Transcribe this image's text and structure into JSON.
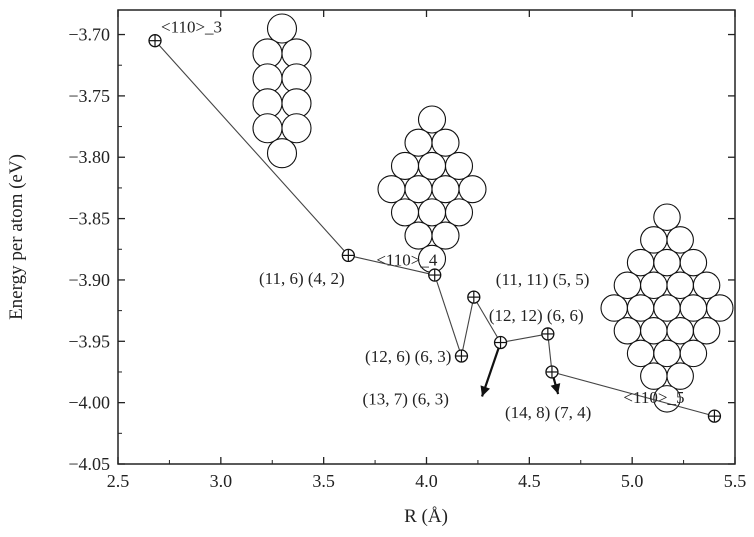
{
  "chart_data": {
    "type": "scatter",
    "title": "",
    "xlabel": "R (Å)",
    "ylabel": "Energy per atom (eV)",
    "xlim": [
      2.5,
      5.5
    ],
    "ylim": [
      -4.05,
      -3.68
    ],
    "xticks": [
      "2.5",
      "3.0",
      "3.5",
      "4.0",
      "4.5",
      "5.0",
      "5.5"
    ],
    "yticks": [
      "-3.70",
      "-3.75",
      "-3.80",
      "-3.85",
      "-3.90",
      "-3.95",
      "-4.00",
      "-4.05"
    ],
    "grid": false,
    "marker": "circle-plus",
    "points": [
      {
        "x": 2.68,
        "y": -3.705,
        "label": "<110>_3"
      },
      {
        "x": 3.62,
        "y": -3.88,
        "label": "<110>_4"
      },
      {
        "x": 4.04,
        "y": -3.896,
        "label": "(11, 6) (4, 2)"
      },
      {
        "x": 4.17,
        "y": -3.962,
        "label": "(12, 6) (6, 3)"
      },
      {
        "x": 4.23,
        "y": -3.914,
        "label": "(11, 11) (5, 5)"
      },
      {
        "x": 4.36,
        "y": -3.951,
        "label": "(13, 7) (6, 3)"
      },
      {
        "x": 4.59,
        "y": -3.944,
        "label": "(12, 12) (6, 6)"
      },
      {
        "x": 4.61,
        "y": -3.975,
        "label": "(14, 8) (7, 4)"
      },
      {
        "x": 5.4,
        "y": -4.011,
        "label": "<110>_5"
      }
    ],
    "connections": [
      [
        0,
        1
      ],
      [
        1,
        2
      ],
      [
        2,
        3
      ],
      [
        3,
        4
      ],
      [
        4,
        5
      ],
      [
        5,
        6
      ],
      [
        6,
        7
      ],
      [
        7,
        8
      ]
    ],
    "arrows": [
      [
        5,
        4.27,
        -3.995
      ],
      [
        7,
        4.64,
        -3.993
      ]
    ],
    "label_anchors": [
      {
        "i": 0,
        "dx": 6,
        "dy": -8,
        "anchor": "start"
      },
      {
        "i": 1,
        "dx": 28,
        "dy": 10,
        "anchor": "start"
      },
      {
        "i": 2,
        "dx": -90,
        "dy": 9,
        "anchor": "end"
      },
      {
        "i": 3,
        "dx": -10,
        "dy": 6,
        "anchor": "end"
      },
      {
        "i": 4,
        "dx": 22,
        "dy": -12,
        "anchor": "start"
      },
      {
        "i": 5,
        "dx": -138,
        "dy": 62,
        "anchor": "start"
      },
      {
        "i": 6,
        "dx": -59,
        "dy": -13,
        "anchor": "start"
      },
      {
        "i": 7,
        "dx": -47,
        "dy": 46,
        "anchor": "start"
      },
      {
        "i": 8,
        "dx": -91,
        "dy": -13,
        "anchor": "start"
      }
    ],
    "structures": [
      {
        "name": "<110>_3",
        "rows": [
          1,
          2,
          2,
          2,
          2,
          1
        ]
      },
      {
        "name": "<110>_4",
        "rows": [
          1,
          2,
          3,
          4,
          3,
          2,
          1
        ]
      },
      {
        "name": "<110>_5",
        "rows": [
          1,
          2,
          3,
          4,
          5,
          4,
          3,
          2,
          1
        ]
      }
    ]
  }
}
